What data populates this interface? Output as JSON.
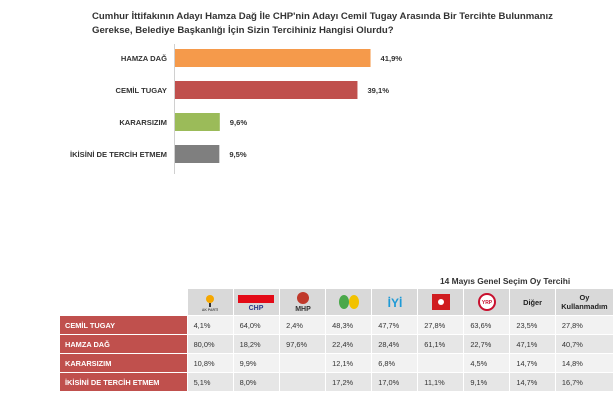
{
  "title": "Cumhur İttifakının Adayı Hamza Dağ İle CHP'nin Adayı Cemil Tugay Arasında Bir Tercihte Bulunmanız Gerekse, Belediye Başkanlığı İçin Sizin Tercihiniz Hangisi Olurdu?",
  "chart_data": {
    "type": "bar",
    "orientation": "horizontal",
    "categories": [
      "HAMZA DAĞ",
      "CEMİL TUGAY",
      "KARARSIZIM",
      "İKİSİNİ DE TERCİH ETMEM"
    ],
    "values": [
      41.9,
      39.1,
      9.6,
      9.5
    ],
    "value_labels": [
      "41,9%",
      "39,1%",
      "9,6%",
      "9,5%"
    ],
    "colors": [
      "#f59a4b",
      "#c0504d",
      "#9bbb59",
      "#7f7f7f"
    ],
    "xlim": [
      0,
      50
    ],
    "grid": false,
    "legend": "none"
  },
  "table": {
    "title": "14 Mayıs Genel Seçim Oy Tercihi",
    "logos": [
      {
        "icon": "akp-logo",
        "text": "AK PARTİ",
        "color": "#f5a700"
      },
      {
        "icon": "chp-logo",
        "text": "CHP",
        "color": "#e30a17"
      },
      {
        "icon": "mhp-logo",
        "text": "MHP",
        "color": "#c0392b"
      },
      {
        "icon": "hdp-logo",
        "text": "",
        "color": "#4aa84a"
      },
      {
        "icon": "iyi-logo",
        "text": "İYİ",
        "color": "#1e9ad6"
      },
      {
        "icon": "zafer-logo",
        "text": "",
        "color": "#d01c1f"
      },
      {
        "icon": "yrp-logo",
        "text": "YRP",
        "color": "#c8102e"
      }
    ],
    "headers": [
      "Diğer",
      "Oy Kullanmadım"
    ],
    "rows": [
      {
        "label": "CEMİL TUGAY",
        "color": "#c0504d",
        "values": [
          "4,1%",
          "64,0%",
          "2,4%",
          "48,3%",
          "47,7%",
          "27,8%",
          "63,6%",
          "23,5%",
          "27,8%"
        ]
      },
      {
        "label": "HAMZA DAĞ",
        "color": "#c0504d",
        "values": [
          "80,0%",
          "18,2%",
          "97,6%",
          "22,4%",
          "28,4%",
          "61,1%",
          "22,7%",
          "47,1%",
          "40,7%"
        ]
      },
      {
        "label": "KARARSIZIM",
        "color": "#c0504d",
        "values": [
          "10,8%",
          "9,9%",
          "",
          "12,1%",
          "6,8%",
          "",
          "4,5%",
          "14,7%",
          "14,8%"
        ]
      },
      {
        "label": "İKİSİNİ DE TERCİH ETMEM",
        "color": "#c0504d",
        "values": [
          "5,1%",
          "8,0%",
          "",
          "17,2%",
          "17,0%",
          "11,1%",
          "9,1%",
          "14,7%",
          "16,7%"
        ]
      }
    ]
  }
}
